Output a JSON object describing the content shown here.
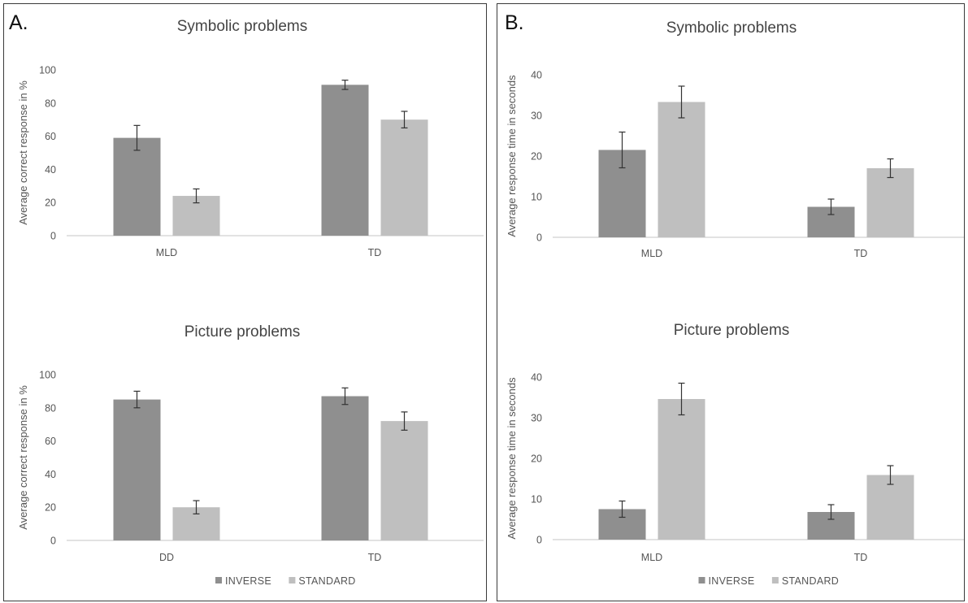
{
  "panels": [
    {
      "letter": "A."
    },
    {
      "letter": "B."
    }
  ],
  "legend": [
    {
      "label": "INVERSE",
      "color": "#8f8f8f"
    },
    {
      "label": "STANDARD",
      "color": "#bfbfbf"
    }
  ],
  "chart_data": [
    {
      "type": "bar",
      "title": "Symbolic problems",
      "ylabel": "Average correct response in %",
      "categories": [
        "MLD",
        "TD"
      ],
      "ylim": [
        0,
        100
      ],
      "yticks": [
        0,
        20,
        40,
        60,
        80,
        100
      ],
      "series": [
        {
          "name": "INVERSE",
          "values": [
            59,
            91
          ],
          "errors": [
            7.5,
            2.8
          ]
        },
        {
          "name": "STANDARD",
          "values": [
            24,
            70
          ],
          "errors": [
            4.2,
            5.0
          ]
        }
      ],
      "grid": false,
      "legend": "none"
    },
    {
      "type": "bar",
      "title": "Picture problems",
      "ylabel": "Average correct response in %",
      "categories": [
        "DD",
        "TD"
      ],
      "ylim": [
        0,
        100
      ],
      "yticks": [
        0,
        20,
        40,
        60,
        80,
        100
      ],
      "series": [
        {
          "name": "INVERSE",
          "values": [
            85,
            87
          ],
          "errors": [
            5.0,
            5.0
          ]
        },
        {
          "name": "STANDARD",
          "values": [
            20,
            72
          ],
          "errors": [
            4.0,
            5.5
          ]
        }
      ],
      "grid": false,
      "legend": "bottom"
    },
    {
      "type": "bar",
      "title": "Symbolic problems",
      "ylabel": "Average response time in seconds",
      "categories": [
        "MLD",
        "TD"
      ],
      "ylim": [
        0,
        40
      ],
      "yticks": [
        0,
        10,
        20,
        30,
        40
      ],
      "series": [
        {
          "name": "INVERSE",
          "values": [
            21.5,
            7.5
          ],
          "errors": [
            4.4,
            1.9
          ]
        },
        {
          "name": "STANDARD",
          "values": [
            33.3,
            17.0
          ],
          "errors": [
            3.9,
            2.3
          ]
        }
      ],
      "grid": false,
      "legend": "none"
    },
    {
      "type": "bar",
      "title": "Picture problems",
      "ylabel": "Average response time in seconds",
      "categories": [
        "MLD",
        "TD"
      ],
      "ylim": [
        0,
        40
      ],
      "yticks": [
        0,
        10,
        20,
        30,
        40
      ],
      "series": [
        {
          "name": "INVERSE",
          "values": [
            7.5,
            6.8
          ],
          "errors": [
            2.0,
            1.8
          ]
        },
        {
          "name": "STANDARD",
          "values": [
            34.6,
            15.9
          ],
          "errors": [
            3.9,
            2.3
          ]
        }
      ],
      "grid": false,
      "legend": "bottom"
    }
  ]
}
